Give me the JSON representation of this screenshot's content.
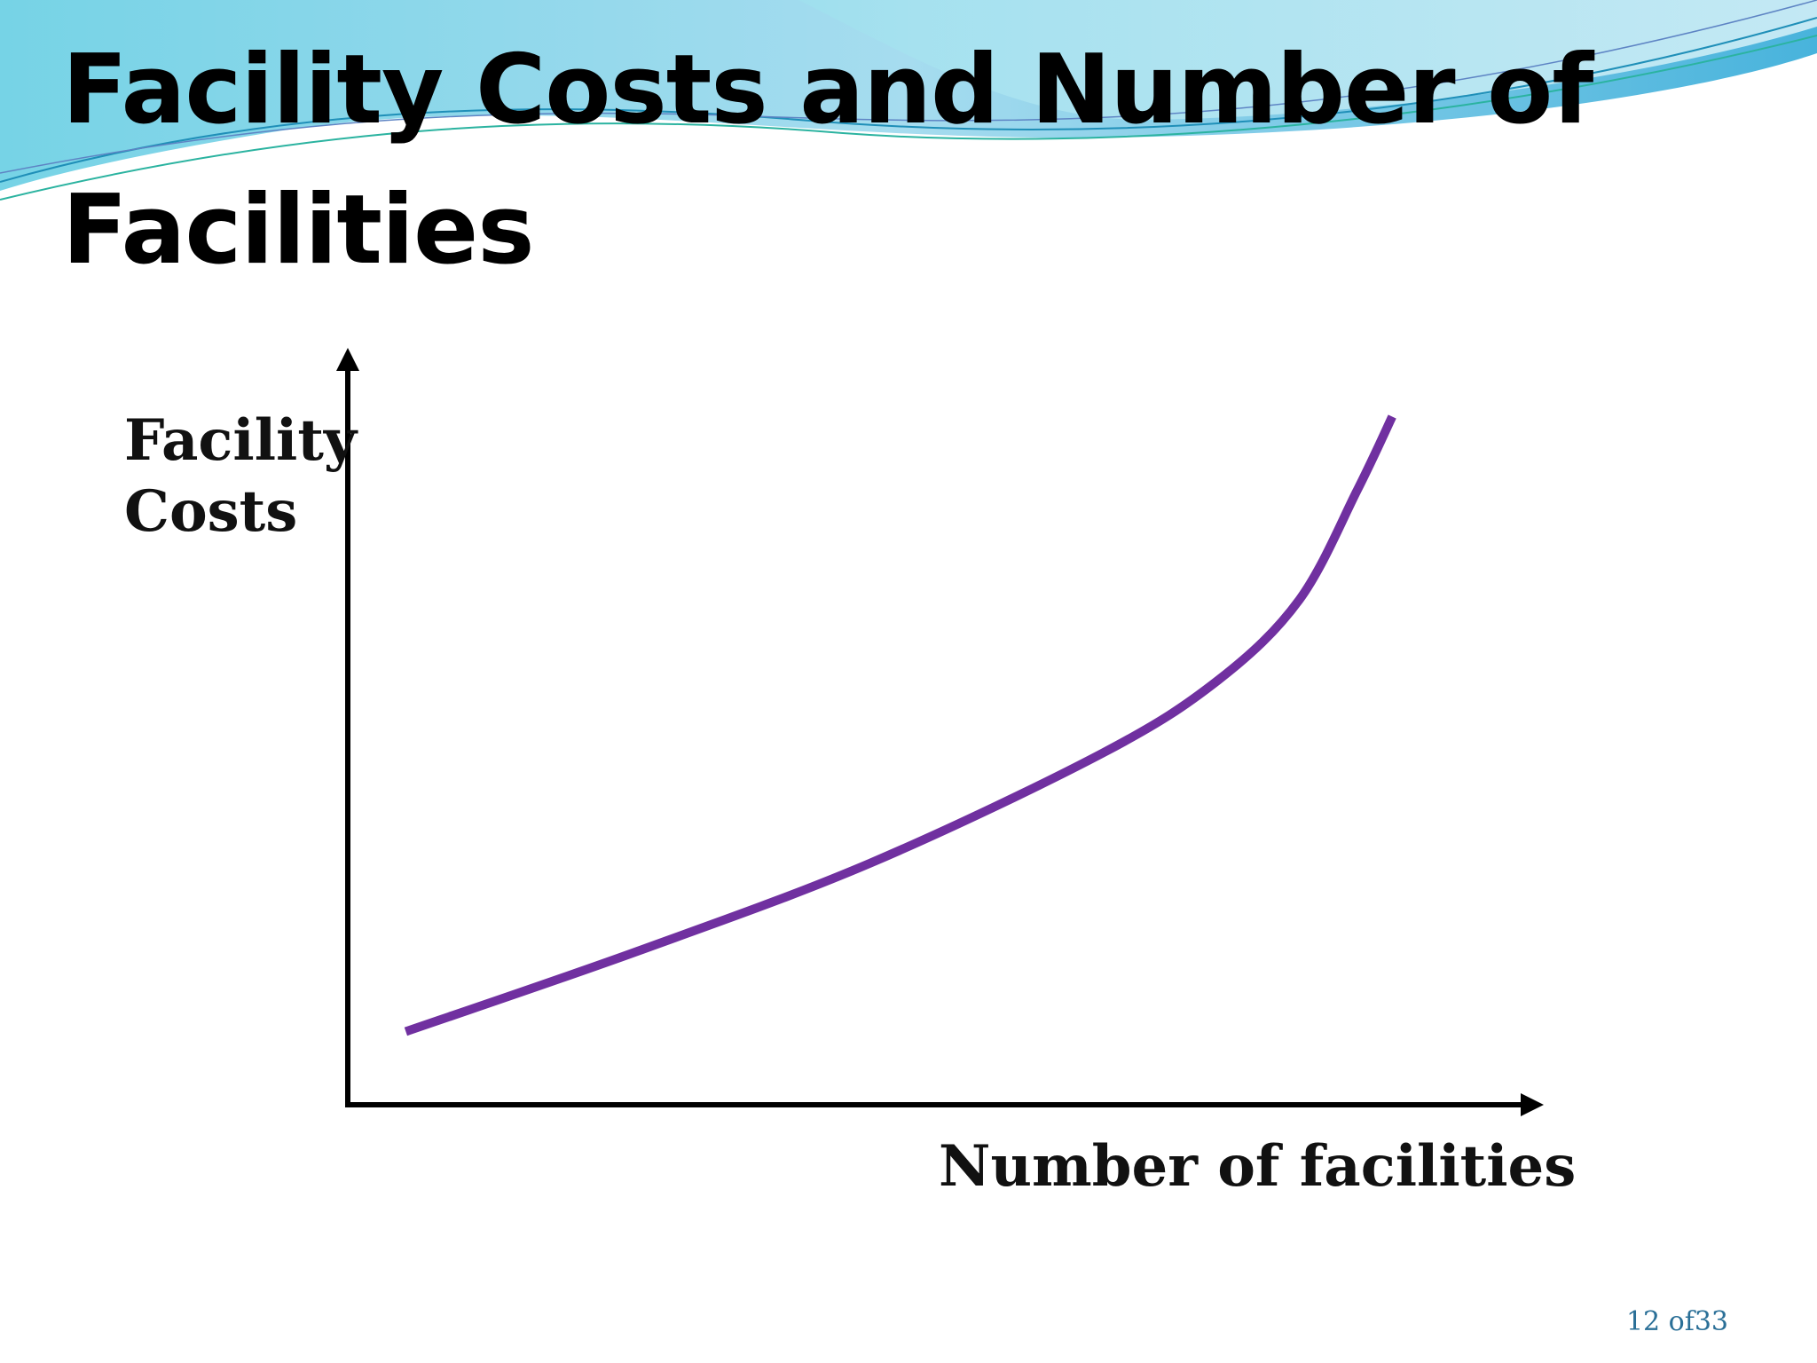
{
  "slide": {
    "title_line_1": "Facility Costs and Number of",
    "title_line_2": "Facilities",
    "page_number": "12 of33"
  },
  "colors": {
    "curve": "#7030a0",
    "axes": "#000000",
    "wave_dark": "#3aa0c8",
    "wave_light": "#a8dff0"
  },
  "chart_data": {
    "type": "line",
    "title": "",
    "xlabel": "Number of facilities",
    "ylabel_lines": [
      "Facility",
      "Costs"
    ],
    "axes_ticks": false,
    "grid": false,
    "xlim": [
      0,
      10
    ],
    "ylim": [
      0,
      10
    ],
    "series": [
      {
        "values": [
          {
            "x": 0.5,
            "y": 1.0
          },
          {
            "x": 2.5,
            "y": 2.1
          },
          {
            "x": 4.5,
            "y": 3.3
          },
          {
            "x": 6.5,
            "y": 4.8
          },
          {
            "x": 7.5,
            "y": 5.8
          },
          {
            "x": 8.2,
            "y": 6.9
          },
          {
            "x": 8.7,
            "y": 8.4
          },
          {
            "x": 9.0,
            "y": 9.4
          }
        ]
      }
    ]
  }
}
